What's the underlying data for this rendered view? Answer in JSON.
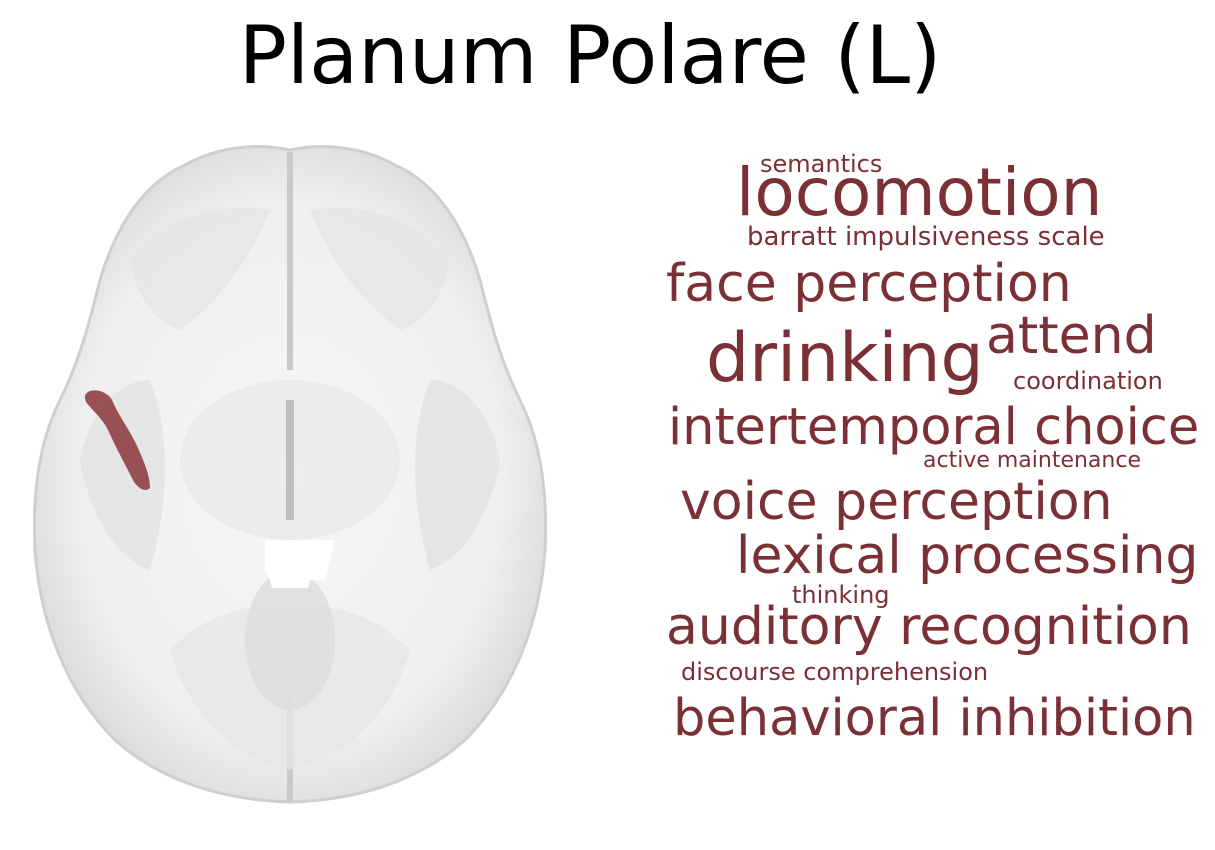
{
  "title": "Planum Polare (L)",
  "colors": {
    "word_color": "#7b3035",
    "region_color": "#8e3b40",
    "brain_fill": "#f2f2f2",
    "brain_shadow": "#c8c8c8",
    "background": "#ffffff"
  },
  "brain_image": {
    "view": "axial brain slice",
    "highlighted_region": "left planum polare"
  },
  "word_cloud": [
    {
      "id": "semantics",
      "text": "semantics"
    },
    {
      "id": "locomotion",
      "text": "locomotion"
    },
    {
      "id": "barratt",
      "text": "barratt impulsiveness scale"
    },
    {
      "id": "face",
      "text": "face perception"
    },
    {
      "id": "drinking",
      "text": "drinking"
    },
    {
      "id": "attend",
      "text": "attend"
    },
    {
      "id": "coordination",
      "text": "coordination"
    },
    {
      "id": "intertemporal",
      "text": "intertemporal choice"
    },
    {
      "id": "active",
      "text": "active maintenance"
    },
    {
      "id": "voice",
      "text": "voice perception"
    },
    {
      "id": "lexical",
      "text": "lexical processing"
    },
    {
      "id": "thinking",
      "text": "thinking"
    },
    {
      "id": "auditory",
      "text": "auditory recognition"
    },
    {
      "id": "discourse",
      "text": "discourse comprehension"
    },
    {
      "id": "behavioral",
      "text": "behavioral inhibition"
    }
  ]
}
